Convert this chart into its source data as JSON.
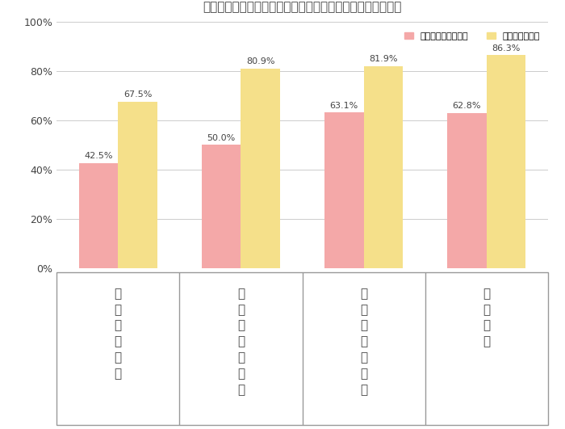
{
  "title": "周りから聴こえる音と自宅から出す音で気になる割合の比較",
  "series1_label": "周りから聴こえる音",
  "series2_label": "自宅から出す音",
  "series1_values": [
    42.5,
    50.0,
    63.1,
    62.8
  ],
  "series2_values": [
    67.5,
    80.9,
    81.9,
    86.3
  ],
  "series1_color": "#F4A8A8",
  "series2_color": "#F5E08A",
  "bar_width": 0.32,
  "ylim": [
    0,
    1.0
  ],
  "yticks": [
    0,
    0.2,
    0.4,
    0.6,
    0.8,
    1.0
  ],
  "ytick_labels": [
    "0%",
    "20%",
    "40%",
    "60%",
    "80%",
    "100%"
  ],
  "title_fontsize": 11,
  "tick_fontsize": 9,
  "legend_fontsize": 8,
  "value_fontsize": 8,
  "label_fontsize": 11,
  "background_color": "#ffffff",
  "grid_color": "#cccccc",
  "text_color": "#444444",
  "display_labels": [
    "テ\nレ\nビ\n・\n音\n楽",
    "掛\n除\n機\n・\n洗\n濯\n機",
    "騒\nぎ\n声\nや\n笑\nい\n声",
    "楽\n器\n演\n奏"
  ]
}
